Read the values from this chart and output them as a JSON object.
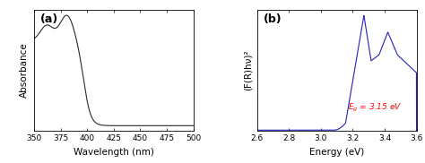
{
  "panel_a": {
    "label": "(a)",
    "xlabel": "Wavelength (nm)",
    "ylabel": "Absorbance",
    "xlim": [
      350,
      500
    ],
    "x_ticks": [
      350,
      375,
      400,
      425,
      450,
      475,
      500
    ],
    "line_color": "#2a2a2a"
  },
  "panel_b": {
    "label": "(b)",
    "xlabel": "Energy (eV)",
    "ylabel": "(F(R)hν)²",
    "xlim": [
      2.6,
      3.6
    ],
    "x_ticks": [
      2.6,
      2.8,
      3.0,
      3.2,
      3.4,
      3.6
    ],
    "line_color": "#2222bb",
    "annotation_text": "E$_g$ = 3.15 eV",
    "annotation_color": "red"
  },
  "background_color": "#ffffff",
  "tick_fontsize": 6.5,
  "label_fontsize": 7.5,
  "panel_label_fontsize": 9
}
